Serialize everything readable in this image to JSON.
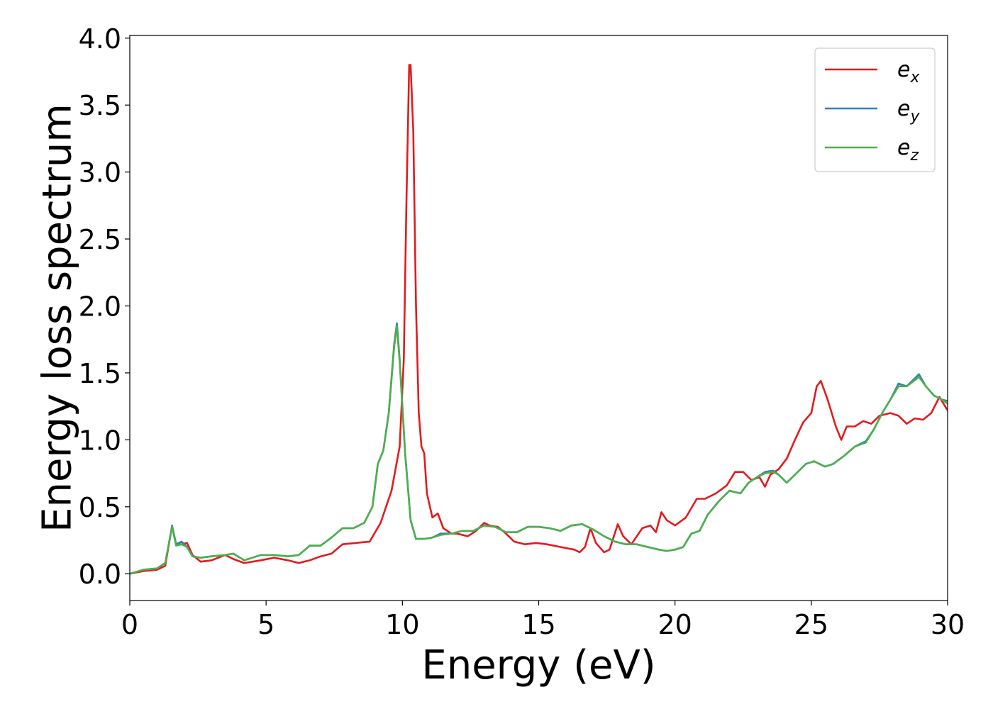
{
  "chart_data": {
    "type": "line",
    "xlabel": "Energy (eV)",
    "ylabel": "Energy loss spectrum",
    "xlim": [
      0,
      30
    ],
    "ylim": [
      -0.2,
      4.02
    ],
    "xticks": [
      0,
      5,
      10,
      15,
      20,
      25,
      30
    ],
    "xtick_labels": [
      "0",
      "5",
      "10",
      "15",
      "20",
      "25",
      "30"
    ],
    "yticks": [
      0.0,
      0.5,
      1.0,
      1.5,
      2.0,
      2.5,
      3.0,
      3.5,
      4.0
    ],
    "ytick_labels": [
      "0.0",
      "0.5",
      "1.0",
      "1.5",
      "2.0",
      "2.5",
      "3.0",
      "3.5",
      "4.0"
    ],
    "grid": false,
    "legend_position": "top-right",
    "series": [
      {
        "name": "e",
        "name_sub": "x",
        "color": "#e41a1c",
        "points": [
          [
            0,
            0.0
          ],
          [
            0.5,
            0.02
          ],
          [
            1.0,
            0.03
          ],
          [
            1.3,
            0.06
          ],
          [
            1.5,
            0.3
          ],
          [
            1.55,
            0.35
          ],
          [
            1.7,
            0.22
          ],
          [
            1.9,
            0.22
          ],
          [
            2.1,
            0.23
          ],
          [
            2.3,
            0.14
          ],
          [
            2.6,
            0.09
          ],
          [
            3.0,
            0.1
          ],
          [
            3.5,
            0.14
          ],
          [
            3.8,
            0.11
          ],
          [
            4.2,
            0.08
          ],
          [
            4.8,
            0.1
          ],
          [
            5.3,
            0.12
          ],
          [
            5.8,
            0.1
          ],
          [
            6.2,
            0.08
          ],
          [
            6.6,
            0.1
          ],
          [
            7.0,
            0.13
          ],
          [
            7.4,
            0.15
          ],
          [
            7.8,
            0.22
          ],
          [
            8.3,
            0.23
          ],
          [
            8.8,
            0.24
          ],
          [
            9.2,
            0.38
          ],
          [
            9.6,
            0.62
          ],
          [
            9.9,
            0.95
          ],
          [
            10.05,
            1.6
          ],
          [
            10.15,
            2.8
          ],
          [
            10.25,
            3.8
          ],
          [
            10.3,
            3.8
          ],
          [
            10.4,
            3.3
          ],
          [
            10.5,
            2.0
          ],
          [
            10.6,
            1.2
          ],
          [
            10.7,
            0.95
          ],
          [
            10.8,
            0.9
          ],
          [
            10.9,
            0.6
          ],
          [
            11.1,
            0.42
          ],
          [
            11.3,
            0.45
          ],
          [
            11.5,
            0.34
          ],
          [
            11.8,
            0.3
          ],
          [
            12.0,
            0.3
          ],
          [
            12.4,
            0.28
          ],
          [
            12.7,
            0.32
          ],
          [
            13.0,
            0.38
          ],
          [
            13.2,
            0.36
          ],
          [
            13.5,
            0.35
          ],
          [
            13.8,
            0.3
          ],
          [
            14.1,
            0.24
          ],
          [
            14.5,
            0.22
          ],
          [
            14.9,
            0.23
          ],
          [
            15.3,
            0.22
          ],
          [
            15.8,
            0.2
          ],
          [
            16.3,
            0.18
          ],
          [
            16.5,
            0.16
          ],
          [
            16.7,
            0.2
          ],
          [
            16.9,
            0.34
          ],
          [
            17.1,
            0.23
          ],
          [
            17.4,
            0.16
          ],
          [
            17.6,
            0.18
          ],
          [
            17.9,
            0.37
          ],
          [
            18.1,
            0.28
          ],
          [
            18.4,
            0.22
          ],
          [
            18.8,
            0.34
          ],
          [
            19.1,
            0.36
          ],
          [
            19.3,
            0.31
          ],
          [
            19.5,
            0.46
          ],
          [
            19.7,
            0.4
          ],
          [
            20.0,
            0.36
          ],
          [
            20.4,
            0.42
          ],
          [
            20.8,
            0.56
          ],
          [
            21.1,
            0.56
          ],
          [
            21.5,
            0.6
          ],
          [
            21.9,
            0.66
          ],
          [
            22.2,
            0.76
          ],
          [
            22.5,
            0.76
          ],
          [
            22.8,
            0.7
          ],
          [
            23.1,
            0.72
          ],
          [
            23.3,
            0.65
          ],
          [
            23.5,
            0.74
          ],
          [
            23.8,
            0.78
          ],
          [
            24.1,
            0.86
          ],
          [
            24.4,
            1.0
          ],
          [
            24.7,
            1.13
          ],
          [
            25.0,
            1.2
          ],
          [
            25.2,
            1.4
          ],
          [
            25.35,
            1.44
          ],
          [
            25.6,
            1.3
          ],
          [
            25.9,
            1.1
          ],
          [
            26.1,
            1.0
          ],
          [
            26.3,
            1.1
          ],
          [
            26.6,
            1.1
          ],
          [
            26.9,
            1.14
          ],
          [
            27.2,
            1.12
          ],
          [
            27.5,
            1.18
          ],
          [
            27.9,
            1.2
          ],
          [
            28.2,
            1.18
          ],
          [
            28.5,
            1.12
          ],
          [
            28.8,
            1.16
          ],
          [
            29.1,
            1.15
          ],
          [
            29.4,
            1.2
          ],
          [
            29.7,
            1.32
          ],
          [
            30.0,
            1.22
          ]
        ]
      },
      {
        "name": "e",
        "name_sub": "y",
        "color": "#377eb8",
        "points": [
          [
            0,
            0.0
          ],
          [
            0.5,
            0.03
          ],
          [
            1.0,
            0.04
          ],
          [
            1.3,
            0.08
          ],
          [
            1.5,
            0.3
          ],
          [
            1.55,
            0.36
          ],
          [
            1.7,
            0.22
          ],
          [
            1.9,
            0.24
          ],
          [
            2.1,
            0.2
          ],
          [
            2.3,
            0.13
          ],
          [
            2.6,
            0.12
          ],
          [
            3.0,
            0.13
          ],
          [
            3.5,
            0.14
          ],
          [
            3.8,
            0.15
          ],
          [
            4.2,
            0.1
          ],
          [
            4.8,
            0.14
          ],
          [
            5.3,
            0.14
          ],
          [
            5.8,
            0.13
          ],
          [
            6.2,
            0.14
          ],
          [
            6.6,
            0.21
          ],
          [
            7.0,
            0.21
          ],
          [
            7.4,
            0.27
          ],
          [
            7.8,
            0.34
          ],
          [
            8.2,
            0.34
          ],
          [
            8.6,
            0.38
          ],
          [
            8.9,
            0.5
          ],
          [
            9.1,
            0.82
          ],
          [
            9.3,
            0.92
          ],
          [
            9.5,
            1.2
          ],
          [
            9.7,
            1.72
          ],
          [
            9.8,
            1.87
          ],
          [
            9.9,
            1.6
          ],
          [
            10.1,
            0.9
          ],
          [
            10.3,
            0.4
          ],
          [
            10.5,
            0.26
          ],
          [
            10.8,
            0.26
          ],
          [
            11.1,
            0.27
          ],
          [
            11.4,
            0.3
          ],
          [
            11.8,
            0.3
          ],
          [
            12.2,
            0.32
          ],
          [
            12.6,
            0.32
          ],
          [
            13.0,
            0.36
          ],
          [
            13.4,
            0.35
          ],
          [
            13.8,
            0.31
          ],
          [
            14.2,
            0.31
          ],
          [
            14.6,
            0.35
          ],
          [
            15.0,
            0.35
          ],
          [
            15.4,
            0.34
          ],
          [
            15.8,
            0.32
          ],
          [
            16.2,
            0.36
          ],
          [
            16.6,
            0.37
          ],
          [
            17.0,
            0.33
          ],
          [
            17.4,
            0.28
          ],
          [
            17.8,
            0.24
          ],
          [
            18.2,
            0.22
          ],
          [
            18.6,
            0.22
          ],
          [
            19.0,
            0.2
          ],
          [
            19.4,
            0.18
          ],
          [
            19.7,
            0.17
          ],
          [
            20.0,
            0.18
          ],
          [
            20.3,
            0.2
          ],
          [
            20.6,
            0.3
          ],
          [
            20.9,
            0.32
          ],
          [
            21.2,
            0.44
          ],
          [
            21.6,
            0.54
          ],
          [
            22.0,
            0.62
          ],
          [
            22.4,
            0.6
          ],
          [
            22.7,
            0.68
          ],
          [
            23.0,
            0.72
          ],
          [
            23.3,
            0.76
          ],
          [
            23.6,
            0.77
          ],
          [
            23.8,
            0.74
          ],
          [
            24.1,
            0.68
          ],
          [
            24.4,
            0.74
          ],
          [
            24.8,
            0.82
          ],
          [
            25.1,
            0.84
          ],
          [
            25.5,
            0.8
          ],
          [
            25.8,
            0.82
          ],
          [
            26.2,
            0.88
          ],
          [
            26.6,
            0.95
          ],
          [
            27.0,
            0.99
          ],
          [
            27.3,
            1.08
          ],
          [
            27.6,
            1.2
          ],
          [
            27.9,
            1.3
          ],
          [
            28.2,
            1.42
          ],
          [
            28.5,
            1.4
          ],
          [
            28.7,
            1.44
          ],
          [
            28.95,
            1.49
          ],
          [
            29.2,
            1.4
          ],
          [
            29.5,
            1.33
          ],
          [
            29.8,
            1.3
          ],
          [
            30.0,
            1.29
          ]
        ]
      },
      {
        "name": "e",
        "name_sub": "z",
        "color": "#4daf4a",
        "points": [
          [
            0,
            0.0
          ],
          [
            0.5,
            0.03
          ],
          [
            1.0,
            0.04
          ],
          [
            1.3,
            0.08
          ],
          [
            1.5,
            0.3
          ],
          [
            1.55,
            0.35
          ],
          [
            1.7,
            0.21
          ],
          [
            1.9,
            0.22
          ],
          [
            2.1,
            0.2
          ],
          [
            2.3,
            0.13
          ],
          [
            2.6,
            0.12
          ],
          [
            3.0,
            0.13
          ],
          [
            3.5,
            0.14
          ],
          [
            3.8,
            0.15
          ],
          [
            4.2,
            0.1
          ],
          [
            4.8,
            0.14
          ],
          [
            5.3,
            0.14
          ],
          [
            5.8,
            0.13
          ],
          [
            6.2,
            0.14
          ],
          [
            6.6,
            0.21
          ],
          [
            7.0,
            0.21
          ],
          [
            7.4,
            0.27
          ],
          [
            7.8,
            0.34
          ],
          [
            8.2,
            0.34
          ],
          [
            8.6,
            0.38
          ],
          [
            8.9,
            0.5
          ],
          [
            9.1,
            0.82
          ],
          [
            9.3,
            0.92
          ],
          [
            9.5,
            1.2
          ],
          [
            9.7,
            1.7
          ],
          [
            9.8,
            1.85
          ],
          [
            9.9,
            1.58
          ],
          [
            10.1,
            0.9
          ],
          [
            10.3,
            0.4
          ],
          [
            10.5,
            0.26
          ],
          [
            10.8,
            0.26
          ],
          [
            11.1,
            0.27
          ],
          [
            11.4,
            0.29
          ],
          [
            11.8,
            0.3
          ],
          [
            12.2,
            0.32
          ],
          [
            12.6,
            0.32
          ],
          [
            13.0,
            0.36
          ],
          [
            13.4,
            0.35
          ],
          [
            13.8,
            0.31
          ],
          [
            14.2,
            0.31
          ],
          [
            14.6,
            0.35
          ],
          [
            15.0,
            0.35
          ],
          [
            15.4,
            0.34
          ],
          [
            15.8,
            0.32
          ],
          [
            16.2,
            0.36
          ],
          [
            16.6,
            0.37
          ],
          [
            17.0,
            0.33
          ],
          [
            17.4,
            0.28
          ],
          [
            17.8,
            0.24
          ],
          [
            18.2,
            0.22
          ],
          [
            18.6,
            0.22
          ],
          [
            19.0,
            0.2
          ],
          [
            19.4,
            0.18
          ],
          [
            19.7,
            0.17
          ],
          [
            20.0,
            0.18
          ],
          [
            20.3,
            0.2
          ],
          [
            20.6,
            0.3
          ],
          [
            20.9,
            0.32
          ],
          [
            21.2,
            0.44
          ],
          [
            21.6,
            0.54
          ],
          [
            22.0,
            0.62
          ],
          [
            22.4,
            0.6
          ],
          [
            22.7,
            0.68
          ],
          [
            23.0,
            0.72
          ],
          [
            23.3,
            0.75
          ],
          [
            23.6,
            0.76
          ],
          [
            23.8,
            0.74
          ],
          [
            24.1,
            0.68
          ],
          [
            24.4,
            0.74
          ],
          [
            24.8,
            0.82
          ],
          [
            25.1,
            0.84
          ],
          [
            25.5,
            0.8
          ],
          [
            25.8,
            0.82
          ],
          [
            26.2,
            0.88
          ],
          [
            26.6,
            0.95
          ],
          [
            27.0,
            0.98
          ],
          [
            27.3,
            1.08
          ],
          [
            27.6,
            1.2
          ],
          [
            27.9,
            1.3
          ],
          [
            28.2,
            1.4
          ],
          [
            28.5,
            1.4
          ],
          [
            28.7,
            1.43
          ],
          [
            28.95,
            1.47
          ],
          [
            29.2,
            1.4
          ],
          [
            29.5,
            1.33
          ],
          [
            29.8,
            1.3
          ],
          [
            30.0,
            1.27
          ]
        ]
      }
    ]
  }
}
